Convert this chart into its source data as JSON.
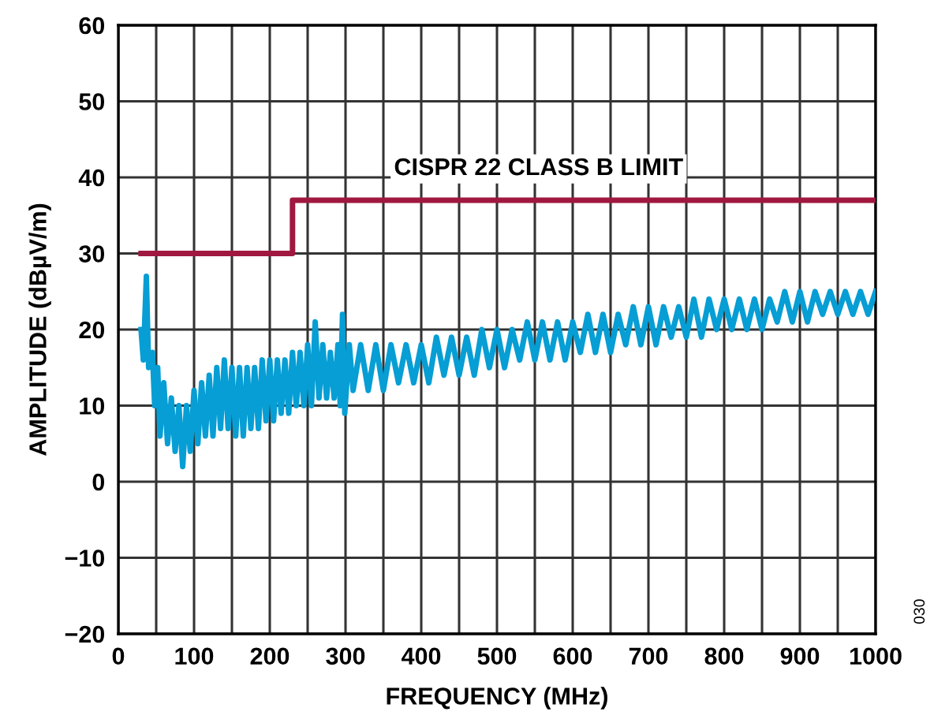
{
  "chart_data": {
    "type": "line",
    "xlabel": "FREQUENCY (MHz)",
    "ylabel": "AMPLITUDE (dBµV/m)",
    "xlim": [
      0,
      1000
    ],
    "ylim": [
      -20,
      60
    ],
    "xticks": [
      0,
      {
        "value": 50,
        "label": null
      },
      100,
      {
        "value": 150,
        "label": null
      },
      200,
      {
        "value": 250,
        "label": null
      },
      300,
      {
        "value": 350,
        "label": null
      },
      400,
      {
        "value": 450,
        "label": null
      },
      500,
      {
        "value": 550,
        "label": null
      },
      600,
      {
        "value": 650,
        "label": null
      },
      700,
      {
        "value": 750,
        "label": null
      },
      800,
      {
        "value": 850,
        "label": null
      },
      900,
      {
        "value": 950,
        "label": null
      },
      1000
    ],
    "yticks": [
      -20,
      -10,
      0,
      10,
      20,
      30,
      40,
      50,
      60
    ],
    "grid": true,
    "series": [
      {
        "color": "#069ed4",
        "x": [
          30,
          33,
          37,
          40,
          45,
          48,
          52,
          55,
          60,
          65,
          70,
          75,
          80,
          85,
          90,
          95,
          100,
          105,
          110,
          115,
          120,
          125,
          130,
          135,
          140,
          145,
          150,
          155,
          160,
          165,
          170,
          175,
          180,
          185,
          190,
          195,
          200,
          205,
          210,
          215,
          220,
          225,
          230,
          235,
          240,
          245,
          250,
          255,
          260,
          265,
          270,
          275,
          280,
          285,
          290,
          293,
          296,
          299,
          305,
          310,
          320,
          330,
          340,
          350,
          360,
          370,
          380,
          390,
          400,
          410,
          420,
          430,
          440,
          450,
          460,
          470,
          480,
          490,
          500,
          510,
          520,
          530,
          540,
          550,
          560,
          570,
          580,
          590,
          600,
          610,
          620,
          630,
          640,
          650,
          660,
          670,
          680,
          690,
          700,
          710,
          720,
          730,
          740,
          750,
          760,
          770,
          780,
          790,
          800,
          810,
          820,
          830,
          840,
          850,
          860,
          870,
          880,
          890,
          900,
          910,
          920,
          930,
          940,
          950,
          960,
          970,
          980,
          990,
          1000
        ],
        "values": [
          20,
          16,
          27,
          15,
          17,
          10,
          15,
          6,
          13,
          5,
          11,
          4,
          10,
          2,
          10,
          4,
          12,
          5,
          13,
          6,
          14,
          6,
          15,
          7,
          16,
          7,
          15,
          6,
          15,
          6,
          15,
          7,
          15,
          7,
          16,
          8,
          16,
          8,
          16,
          9,
          16,
          9,
          17,
          10,
          17,
          10,
          18,
          10,
          21,
          11,
          18,
          11,
          17,
          11,
          18,
          10,
          22,
          9,
          18,
          12,
          18,
          12,
          18,
          12,
          18,
          13,
          18,
          13,
          18,
          13,
          19,
          14,
          19,
          14,
          19,
          14,
          20,
          15,
          20,
          15,
          20,
          16,
          21,
          16,
          21,
          16,
          21,
          16,
          21,
          17,
          22,
          17,
          22,
          17,
          22,
          18,
          23,
          18,
          23,
          18,
          23,
          19,
          23,
          19,
          24,
          19,
          24,
          20,
          24,
          20,
          24,
          20,
          24,
          20,
          24,
          21,
          25,
          21,
          25,
          21,
          25,
          22,
          25,
          22,
          25,
          22,
          25,
          22,
          25
        ]
      },
      {
        "type": "step",
        "color": "#a0183f",
        "x": [
          30,
          230,
          1000
        ],
        "values": [
          30,
          37,
          37
        ]
      }
    ],
    "annotations": [
      "CISPR 22 CLASS B LIMIT",
      "030"
    ]
  }
}
